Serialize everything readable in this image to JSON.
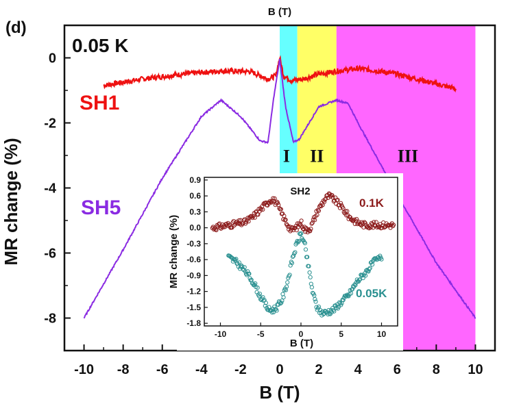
{
  "chart_data": [
    {
      "type": "line",
      "panel_label": "(d)",
      "temperature_label": "0.05 K",
      "top_label": "B (T)",
      "xlabel": "B (T)",
      "ylabel": "MR change (%)",
      "xlim": [
        -11,
        11
      ],
      "ylim": [
        -9,
        1
      ],
      "xticks": [
        -10,
        -8,
        -6,
        -4,
        -2,
        0,
        2,
        4,
        6,
        8,
        10
      ],
      "yticks": [
        0,
        -2,
        -4,
        -6,
        -8
      ],
      "regions": [
        {
          "label": "I",
          "x_from": 0,
          "x_to": 0.9,
          "color": "#66ffff"
        },
        {
          "label": "II",
          "x_from": 0.9,
          "x_to": 2.9,
          "color": "#ffff66"
        },
        {
          "label": "III",
          "x_from": 2.9,
          "x_to": 10,
          "color": "#ff66ff"
        }
      ],
      "series": [
        {
          "name": "SH1",
          "color": "#ee1111",
          "x": [
            -9,
            -7,
            -5,
            -3,
            -1.5,
            -0.6,
            -0.2,
            0,
            0.2,
            0.6,
            1.2,
            2,
            3,
            4,
            5,
            6,
            7,
            8,
            9
          ],
          "y": [
            -0.85,
            -0.65,
            -0.5,
            -0.4,
            -0.42,
            -0.65,
            -0.55,
            0,
            -0.55,
            -0.7,
            -0.65,
            -0.5,
            -0.4,
            -0.33,
            -0.4,
            -0.5,
            -0.65,
            -0.8,
            -0.95
          ]
        },
        {
          "name": "SH5",
          "color": "#8a2be2",
          "x": [
            -10,
            -8,
            -6,
            -4,
            -3,
            -2,
            -1,
            -0.6,
            -0.3,
            0,
            0.3,
            0.7,
            1.0,
            2.0,
            2.9,
            3.5,
            4,
            6,
            8,
            10
          ],
          "y": [
            -8.0,
            -5.9,
            -3.7,
            -1.8,
            -1.3,
            -1.8,
            -2.55,
            -2.6,
            -1.2,
            -0.05,
            -1.5,
            -2.6,
            -2.5,
            -1.5,
            -1.3,
            -1.4,
            -2.0,
            -4.2,
            -6.3,
            -8.0
          ]
        }
      ]
    },
    {
      "type": "scatter",
      "title": "SH2",
      "xlabel": "B (T)",
      "ylabel": "MR change (%)",
      "xlim": [
        -12,
        12
      ],
      "ylim": [
        -1.85,
        0.95
      ],
      "xticks": [
        -10,
        -5,
        0,
        5,
        10
      ],
      "yticks": [
        0.9,
        0.6,
        0.3,
        0.0,
        -0.3,
        -0.6,
        -0.9,
        -1.2,
        -1.5,
        -1.8
      ],
      "series": [
        {
          "name": "0.1K",
          "color": "#8b1a1a",
          "x": [
            -11,
            -9,
            -7,
            -6,
            -5,
            -4,
            -3.5,
            -3,
            -2,
            -1.2,
            -0.6,
            0,
            0.6,
            1.2,
            2,
            3,
            3.5,
            4,
            5,
            6,
            7,
            8,
            10,
            11.5
          ],
          "y": [
            0.0,
            0.05,
            0.1,
            0.2,
            0.35,
            0.5,
            0.55,
            0.45,
            0.15,
            -0.05,
            0.0,
            0.1,
            -0.05,
            0.0,
            0.3,
            0.55,
            0.6,
            0.55,
            0.4,
            0.2,
            0.1,
            0.05,
            0.05,
            0.05
          ]
        },
        {
          "name": "0.05K",
          "color": "#2a9090",
          "x": [
            -9,
            -8,
            -7,
            -6,
            -5,
            -4,
            -3.5,
            -3,
            -2.5,
            -2,
            -1.5,
            -1,
            -0.5,
            0,
            0.5,
            1,
            1.5,
            2,
            2.5,
            3,
            4,
            5,
            6,
            7,
            8,
            9,
            10
          ],
          "y": [
            -0.55,
            -0.65,
            -0.8,
            -1.0,
            -1.3,
            -1.55,
            -1.55,
            -1.5,
            -1.4,
            -1.2,
            -0.9,
            -0.55,
            -0.3,
            -0.1,
            -0.35,
            -0.8,
            -1.25,
            -1.5,
            -1.6,
            -1.6,
            -1.55,
            -1.4,
            -1.25,
            -1.0,
            -0.85,
            -0.65,
            -0.55
          ]
        }
      ]
    }
  ]
}
